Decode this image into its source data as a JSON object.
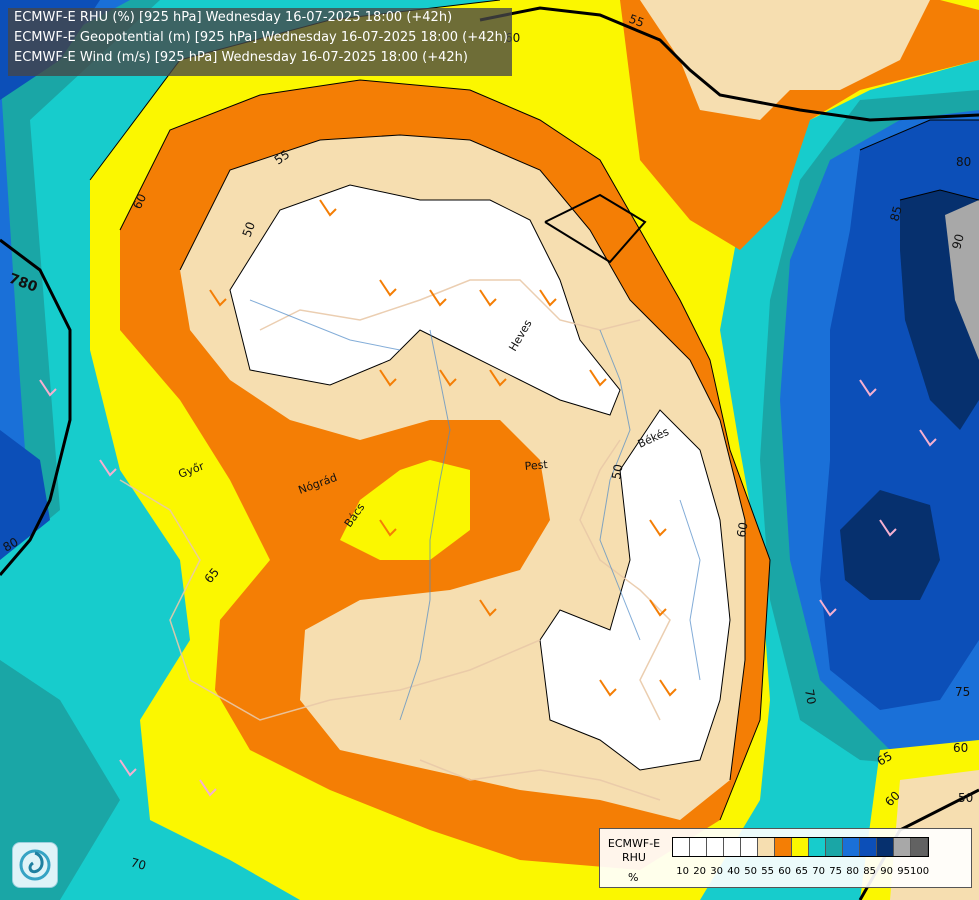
{
  "header": {
    "line1": "ECMWF-E RHU (%) [925 hPa] Wednesday 16-07-2025 18:00 (+42h)",
    "line2": "ECMWF-E Geopotential (m) [925 hPa] Wednesday 16-07-2025 18:00 (+42h)",
    "line3": "ECMWF-E Wind (m/s) [925 hPa] Wednesday 16-07-2025 18:00 (+42h)"
  },
  "legend": {
    "title": "ECMWF-E RHU",
    "unit": "%",
    "classes": [
      {
        "label": "10",
        "color": "#ffffff"
      },
      {
        "label": "20",
        "color": "#ffffff"
      },
      {
        "label": "30",
        "color": "#ffffff"
      },
      {
        "label": "40",
        "color": "#ffffff"
      },
      {
        "label": "50",
        "color": "#ffffff"
      },
      {
        "label": "55",
        "color": "#f6deb0"
      },
      {
        "label": "60",
        "color": "#f47e05"
      },
      {
        "label": "65",
        "color": "#fbf700"
      },
      {
        "label": "70",
        "color": "#17cccc"
      },
      {
        "label": "75",
        "color": "#1aa6a6"
      },
      {
        "label": "80",
        "color": "#1a70d8"
      },
      {
        "label": "85",
        "color": "#0c4fb8"
      },
      {
        "label": "90",
        "color": "#06306e"
      },
      {
        "label": "95",
        "color": "#a8a8a8"
      },
      {
        "label": "100",
        "color": "#626262"
      }
    ]
  },
  "map_labels": {
    "rh_contours": [
      "50",
      "50",
      "55",
      "55",
      "60",
      "60",
      "60",
      "60",
      "65",
      "65",
      "70",
      "70",
      "75",
      "80",
      "80",
      "85",
      "90",
      "50",
      "60"
    ],
    "geopotential": [
      "780"
    ],
    "places": [
      "Pest",
      "Békés",
      "Nógrád",
      "Győr",
      "Heves",
      "Bács"
    ]
  },
  "colors": {
    "rh_white": "#ffffff",
    "rh_55": "#f6deb0",
    "rh_60": "#f47e05",
    "rh_65": "#fbf700",
    "rh_70": "#17cccc",
    "rh_75": "#1aa6a6",
    "rh_80": "#1a70d8",
    "rh_85": "#0c4fb8",
    "rh_90": "#06306e",
    "rh_95": "#a8a8a8"
  }
}
